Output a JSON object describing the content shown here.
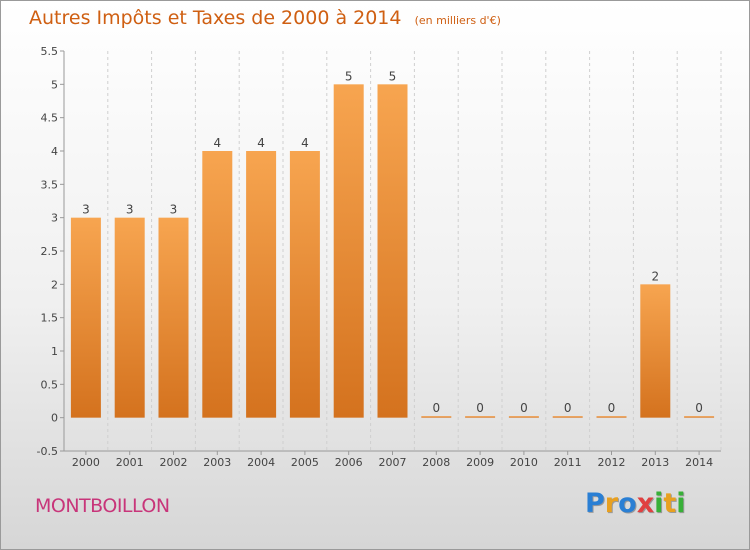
{
  "chart_data": {
    "type": "bar",
    "title": "Autres Impôts et Taxes de 2000 à 2014",
    "subtitle": "(en milliers d'€)",
    "categories": [
      "2000",
      "2001",
      "2002",
      "2003",
      "2004",
      "2005",
      "2006",
      "2007",
      "2008",
      "2009",
      "2010",
      "2011",
      "2012",
      "2013",
      "2014"
    ],
    "values": [
      3,
      3,
      3,
      4,
      4,
      4,
      5,
      5,
      0,
      0,
      0,
      0,
      0,
      2,
      0
    ],
    "value_labels": [
      "3",
      "3",
      "3",
      "4",
      "4",
      "4",
      "5",
      "5",
      "0",
      "0",
      "0",
      "0",
      "0",
      "2",
      "0"
    ],
    "yticks": [
      "-0.5",
      "0",
      "0.5",
      "1",
      "1.5",
      "2",
      "2.5",
      "3",
      "3.5",
      "4",
      "4.5",
      "5",
      "5.5"
    ],
    "ylim": [
      -0.5,
      5.5
    ],
    "xlabel": "",
    "ylabel": "",
    "grid": "vertical dashed",
    "bar_color": "#f08c33",
    "title_color": "#cf5f12"
  },
  "footer": {
    "commune": "MONTBOILLON",
    "brand": "Proxiti",
    "brand_letters": [
      {
        "ch": "P",
        "color": "#2a7fd4"
      },
      {
        "ch": "r",
        "color": "#e8a020"
      },
      {
        "ch": "o",
        "color": "#2a7fd4"
      },
      {
        "ch": "x",
        "color": "#e04040"
      },
      {
        "ch": "i",
        "color": "#38b038"
      },
      {
        "ch": "t",
        "color": "#e8a020"
      },
      {
        "ch": "i",
        "color": "#38b038"
      }
    ]
  }
}
